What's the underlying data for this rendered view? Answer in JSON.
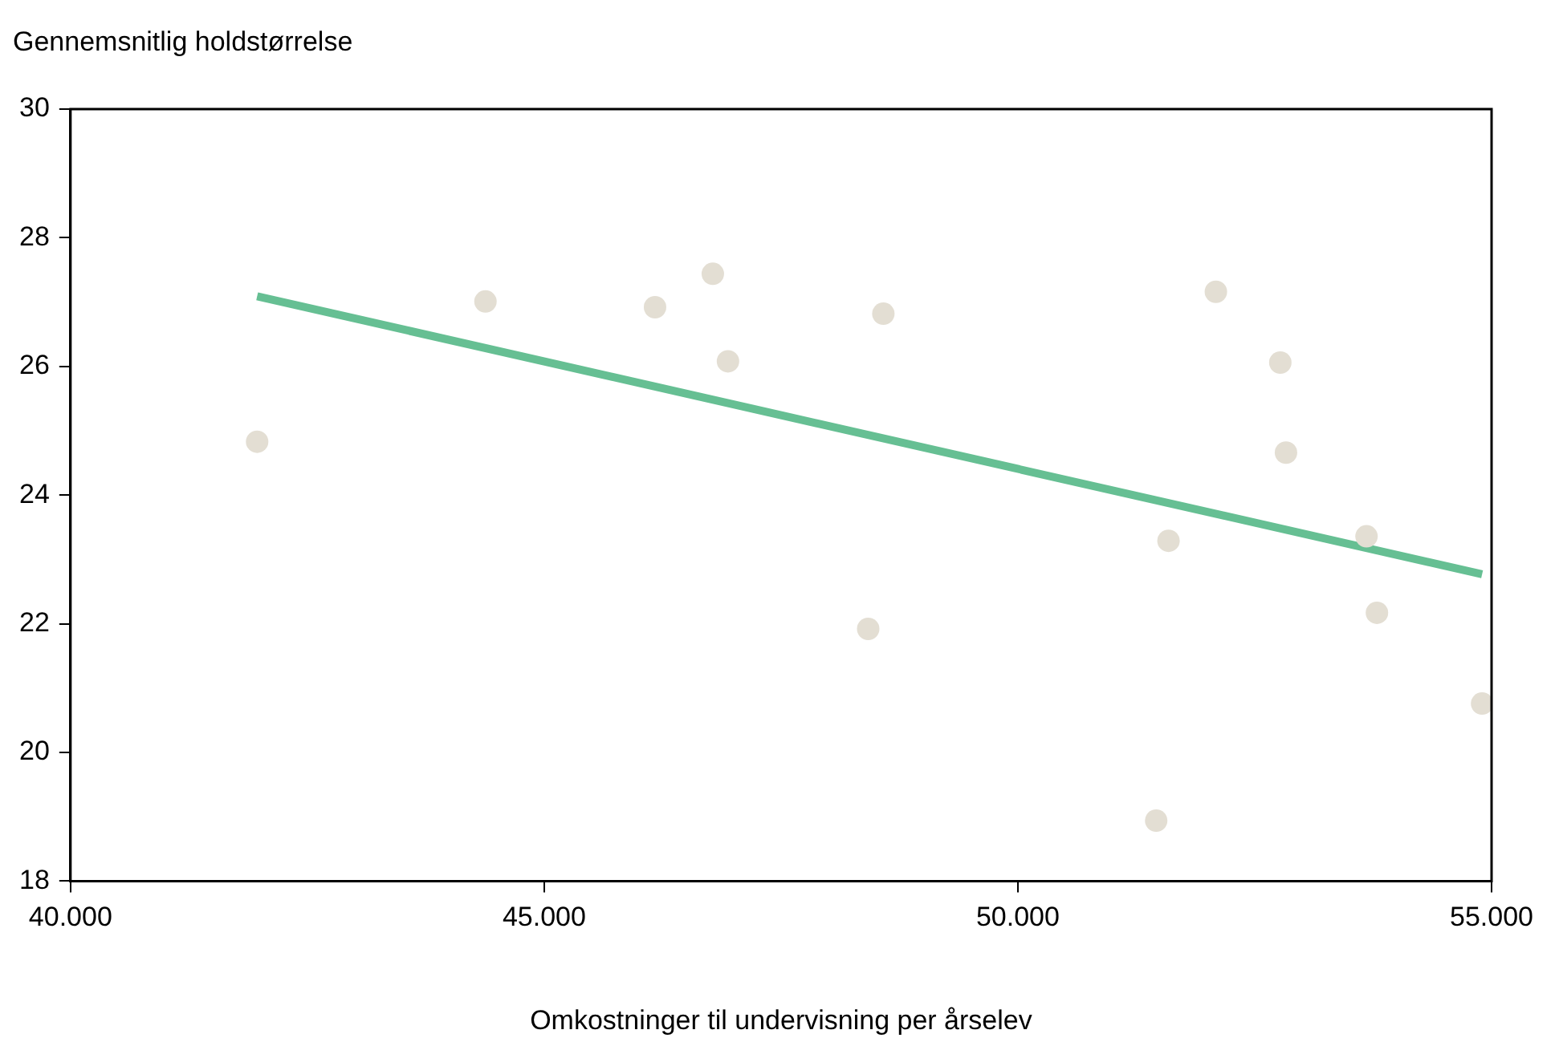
{
  "chart_data": {
    "type": "scatter",
    "xlabel": "Omkostninger til undervisning per årselev",
    "ylabel": "Gennemsnitlig holdstørrelse",
    "xlim": [
      40000,
      55000
    ],
    "xticks": [
      {
        "value": 40000,
        "label": "40.000"
      },
      {
        "value": 45000,
        "label": "45.000"
      },
      {
        "value": 50000,
        "label": "50.000"
      },
      {
        "value": 55000,
        "label": "55.000"
      }
    ],
    "ylim": [
      18,
      30
    ],
    "yticks": [
      18,
      20,
      22,
      24,
      26,
      28,
      30
    ],
    "grid": false,
    "legend": false,
    "marker": "circle",
    "series": [
      {
        "color": "#e3ded3",
        "x": [
          41970,
          44380,
          46170,
          46780,
          46940,
          48580,
          48420,
          52090,
          52770,
          52830,
          51590,
          51460,
          53680,
          53790,
          54900
        ],
        "values": [
          24.83,
          27.01,
          26.92,
          27.44,
          26.08,
          26.82,
          21.92,
          27.16,
          26.06,
          24.66,
          23.29,
          18.94,
          23.36,
          22.17,
          20.76
        ]
      },
      {
        "type": "line",
        "color": "#66bf93",
        "marker": "none",
        "x": [
          41970,
          54900
        ],
        "values": [
          27.09,
          22.77
        ]
      }
    ]
  }
}
